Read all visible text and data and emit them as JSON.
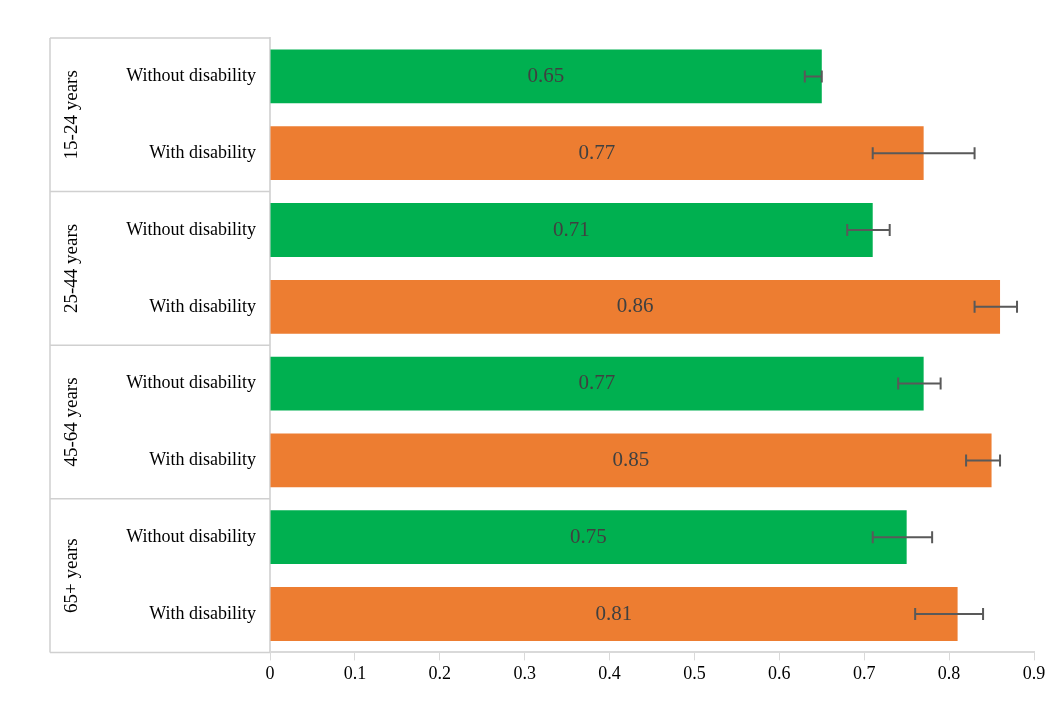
{
  "chart_data": {
    "type": "bar",
    "orientation": "horizontal",
    "categories": [
      "Without disability",
      "With disability",
      "Without disability",
      "With disability",
      "Without disability",
      "With disability",
      "Without disability",
      "With disability"
    ],
    "values": [
      0.65,
      0.77,
      0.71,
      0.86,
      0.77,
      0.85,
      0.75,
      0.81
    ],
    "colors": [
      "#00b050",
      "#ed7d31",
      "#00b050",
      "#ed7d31",
      "#00b050",
      "#ed7d31",
      "#00b050",
      "#ed7d31"
    ],
    "errors": [
      [
        0.63,
        0.65
      ],
      [
        0.71,
        0.83
      ],
      [
        0.68,
        0.73
      ],
      [
        0.83,
        0.88
      ],
      [
        0.74,
        0.79
      ],
      [
        0.82,
        0.86
      ],
      [
        0.71,
        0.78
      ],
      [
        0.76,
        0.84
      ]
    ],
    "xlim": [
      0,
      0.9
    ],
    "xticks": [
      0,
      0.1,
      0.2,
      0.3,
      0.4,
      0.5,
      0.6,
      0.7,
      0.8,
      0.9
    ],
    "annotations": [
      "15-24 years",
      "25-44 years",
      "45-64 years",
      "65+ years"
    ],
    "data_labels": true,
    "grid": false,
    "legend": false
  }
}
